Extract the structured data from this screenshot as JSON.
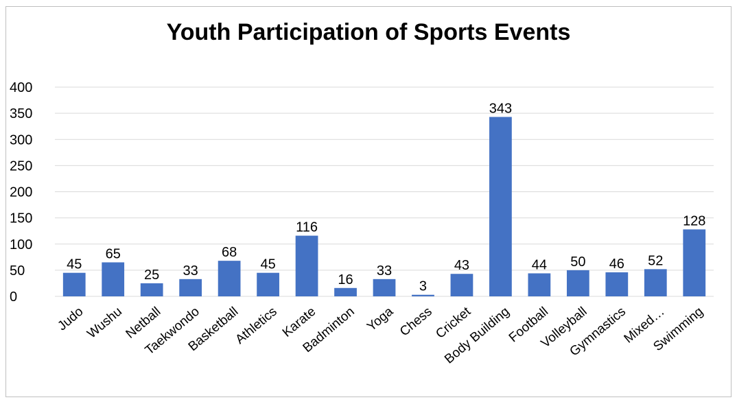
{
  "chart_data": {
    "type": "bar",
    "title": "Youth Participation of Sports Events",
    "categories": [
      "Judo",
      "Wushu",
      "Netball",
      "Taekwondo",
      "Basketball",
      "Athletics",
      "Karate",
      "Badminton",
      "Yoga",
      "Chess",
      "Cricket",
      "Body Building",
      "Football",
      "Volleyball",
      "Gymnastics",
      "Mixed…",
      "Swimming"
    ],
    "values": [
      45,
      65,
      25,
      33,
      68,
      45,
      116,
      16,
      33,
      3,
      43,
      343,
      44,
      50,
      46,
      52,
      128
    ],
    "yticks": [
      0,
      50,
      100,
      150,
      200,
      250,
      300,
      350,
      400
    ],
    "ylim": [
      0,
      400
    ],
    "xlabel": "",
    "ylabel": "",
    "grid": true,
    "bar_color": "#4472c4",
    "grid_color": "#d9d9d9"
  }
}
